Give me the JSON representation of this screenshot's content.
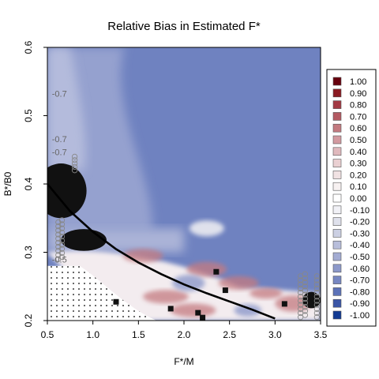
{
  "chart_data": {
    "type": "heatmap",
    "title": "Relative Bias in Estimated F*",
    "xlabel": "F*/M",
    "ylabel": "B*/B0",
    "xlim": [
      0.5,
      3.5
    ],
    "ylim": [
      0.2,
      0.6
    ],
    "x_ticks": [
      "0.5",
      "1.0",
      "1.5",
      "2.0",
      "2.5",
      "3.0",
      "3.5"
    ],
    "y_ticks": [
      "0.2",
      "0.3",
      "0.4",
      "0.5",
      "0.6"
    ],
    "contour_labels": [
      "-0.7",
      "-0.7",
      "-0.7",
      "-0.5"
    ],
    "legend": {
      "placement": "right",
      "entries": [
        {
          "label": "1.00",
          "color": "#67000d"
        },
        {
          "label": "0.90",
          "color": "#8b1a22"
        },
        {
          "label": "0.80",
          "color": "#a33a44"
        },
        {
          "label": "0.70",
          "color": "#b45a62"
        },
        {
          "label": "0.60",
          "color": "#c47a80"
        },
        {
          "label": "0.50",
          "color": "#d39aa0"
        },
        {
          "label": "0.40",
          "color": "#e0b9bd"
        },
        {
          "label": "0.30",
          "color": "#ead0d2"
        },
        {
          "label": "0.20",
          "color": "#f1e2e3"
        },
        {
          "label": "0.10",
          "color": "#f7f1f1"
        },
        {
          "label": "0.00",
          "color": "#ffffff"
        },
        {
          "label": "-0.10",
          "color": "#f1f1f6"
        },
        {
          "label": "-0.20",
          "color": "#dfe1ec"
        },
        {
          "label": "-0.30",
          "color": "#ccd0e3"
        },
        {
          "label": "-0.40",
          "color": "#b8bedb"
        },
        {
          "label": "-0.50",
          "color": "#a3acd3"
        },
        {
          "label": "-0.60",
          "color": "#8d99ca"
        },
        {
          "label": "-0.70",
          "color": "#7787c2"
        },
        {
          "label": "-0.80",
          "color": "#5c72b8"
        },
        {
          "label": "-0.90",
          "color": "#3a55a6"
        },
        {
          "label": "-1.00",
          "color": "#123a92"
        }
      ]
    },
    "curve": {
      "color": "#000000",
      "points": [
        [
          0.5,
          0.4
        ],
        [
          0.75,
          0.36
        ],
        [
          1.0,
          0.33
        ],
        [
          1.25,
          0.305
        ],
        [
          1.5,
          0.285
        ],
        [
          1.75,
          0.268
        ],
        [
          2.0,
          0.253
        ],
        [
          2.25,
          0.24
        ],
        [
          2.5,
          0.228
        ],
        [
          2.75,
          0.216
        ],
        [
          3.0,
          0.203
        ]
      ]
    },
    "regions": {
      "base_color": "#6f82c0",
      "light_band_x": [
        0.5,
        1.6
      ],
      "black_blobs": [
        {
          "x": 0.65,
          "y": 0.39,
          "rx": 0.28,
          "ry": 0.04
        },
        {
          "x": 0.9,
          "y": 0.318,
          "rx": 0.25,
          "ry": 0.016
        },
        {
          "x": 3.4,
          "y": 0.23,
          "rx": 0.1,
          "ry": 0.012
        }
      ],
      "hatched_region": "below y=0.28 for x from 0.5 to about 1.25, below the curve"
    }
  }
}
